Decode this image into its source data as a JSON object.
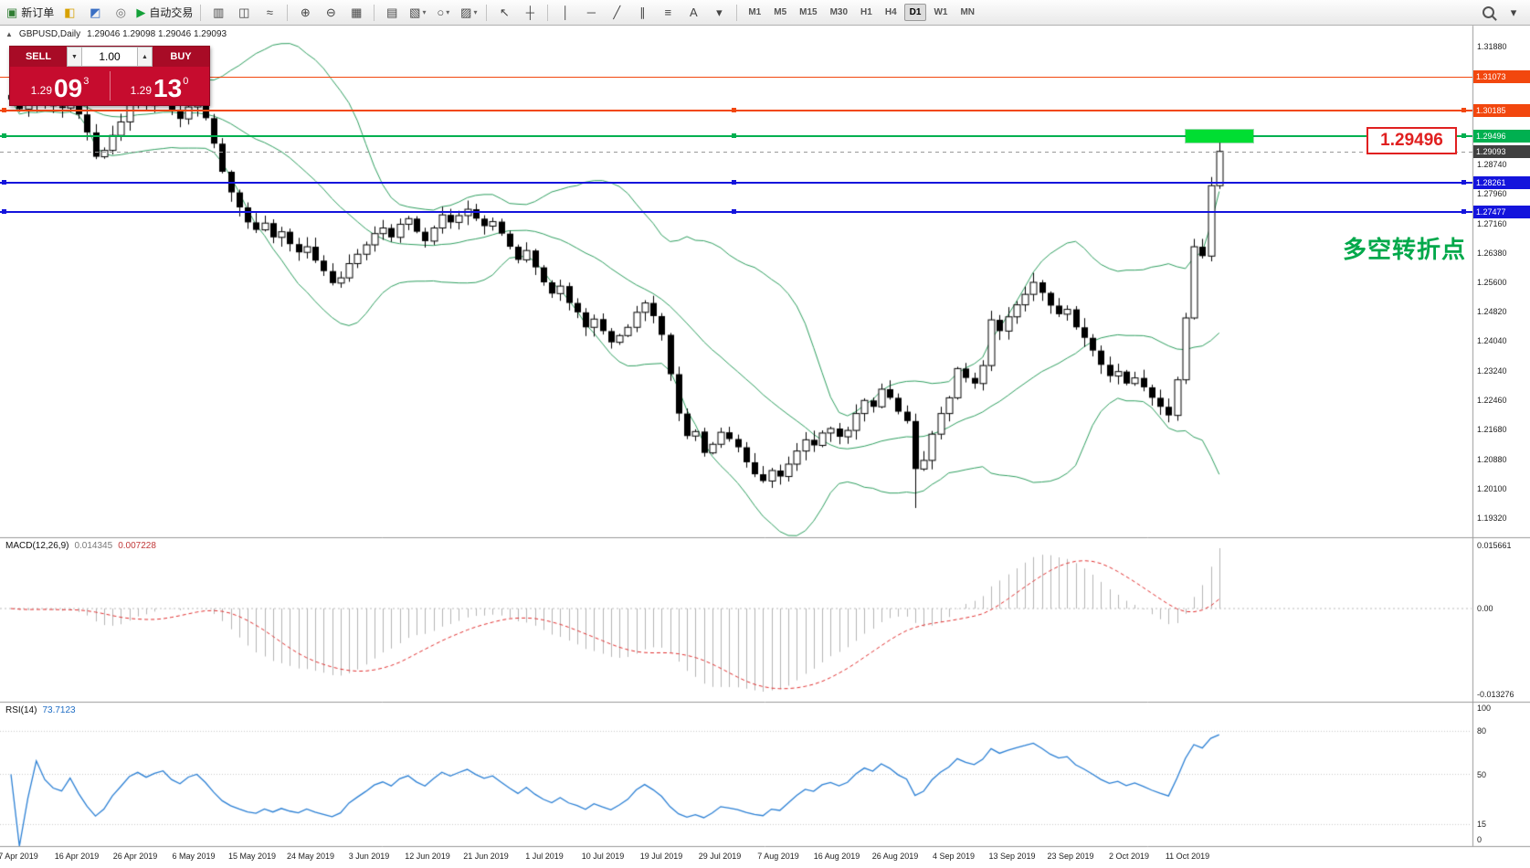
{
  "colors": {
    "up_candle": "#ffffff",
    "down_candle": "#000000",
    "bollinger": "#2e9e5f",
    "macd_hist": "#b4b4b4",
    "macd_signal": "#e03030",
    "rsi_line": "#2a7fd4",
    "panel_red": "#c60c2e",
    "accent_green": "#00b050",
    "accent_orange": "#f2470e",
    "accent_blue": "#1414dc"
  },
  "toolbar": {
    "items": [
      {
        "name": "new-order-button",
        "kind": "text",
        "glyph": "▣",
        "color": "#2f7d32",
        "label": "新订单"
      },
      {
        "name": "market-watch-icon",
        "kind": "icon",
        "glyph": "◧",
        "color": "#d7a100"
      },
      {
        "name": "navigator-icon",
        "kind": "icon",
        "glyph": "◩",
        "color": "#3a6fc4"
      },
      {
        "name": "chat-icon",
        "kind": "icon",
        "glyph": "◎",
        "color": "#707070"
      },
      {
        "name": "autotrade-button",
        "kind": "text",
        "glyph": "▶",
        "color": "#13a038",
        "label": "自动交易"
      },
      {
        "kind": "sep"
      },
      {
        "name": "bar-chart-icon",
        "kind": "icon",
        "glyph": "▥"
      },
      {
        "name": "candlestick-icon",
        "kind": "icon",
        "glyph": "◫"
      },
      {
        "name": "line-chart-icon",
        "kind": "icon",
        "glyph": "≈"
      },
      {
        "kind": "sep"
      },
      {
        "name": "zoom-in-icon",
        "kind": "icon",
        "glyph": "⊕"
      },
      {
        "name": "zoom-out-icon",
        "kind": "icon",
        "glyph": "⊖"
      },
      {
        "name": "auto-arrange-icon",
        "kind": "icon",
        "glyph": "▦"
      },
      {
        "kind": "sep"
      },
      {
        "name": "tile-windows-icon",
        "kind": "icon",
        "glyph": "▤"
      },
      {
        "name": "new-chart-icon",
        "kind": "icon",
        "glyph": "▧",
        "caret": true
      },
      {
        "name": "profiles-icon",
        "kind": "icon",
        "glyph": "○",
        "caret": true
      },
      {
        "name": "template-icon",
        "kind": "icon",
        "glyph": "▨",
        "caret": true
      },
      {
        "kind": "sep"
      },
      {
        "name": "cursor-icon",
        "kind": "icon",
        "glyph": "↖"
      },
      {
        "name": "crosshair-icon",
        "kind": "icon",
        "glyph": "┼"
      },
      {
        "kind": "sep"
      },
      {
        "name": "vertical-line-icon",
        "kind": "icon",
        "glyph": "│"
      },
      {
        "name": "horizontal-line-icon",
        "kind": "icon",
        "glyph": "─"
      },
      {
        "name": "trendline-icon",
        "kind": "icon",
        "glyph": "╱"
      },
      {
        "name": "channel-icon",
        "kind": "icon",
        "glyph": "∥"
      },
      {
        "name": "fibonacci-icon",
        "kind": "icon",
        "glyph": "≡"
      },
      {
        "name": "text-icon",
        "kind": "icon",
        "glyph": "A"
      },
      {
        "name": "objects-dropdown-icon",
        "kind": "icon",
        "glyph": "▾"
      },
      {
        "kind": "sep"
      }
    ],
    "timeframes": {
      "items": [
        "M1",
        "M5",
        "M15",
        "M30",
        "H1",
        "H4",
        "D1",
        "W1",
        "MN"
      ],
      "active": "D1"
    },
    "right_items": [
      {
        "name": "search-button",
        "kind": "css-search"
      },
      {
        "name": "toolbar-overflow-icon",
        "kind": "icon",
        "glyph": "▾"
      }
    ]
  },
  "chart": {
    "title": {
      "collapse": "▲",
      "symbol": "GBPUSD,Daily",
      "quotes": "1.29046 1.29098 1.29046 1.29093"
    },
    "trade_panel": {
      "sell_label": "SELL",
      "buy_label": "BUY",
      "volume": "1.00",
      "vol_down_glyph": "▼",
      "vol_up_glyph": "▲",
      "sell_small": "1.29",
      "sell_big": "09",
      "sell_sup": "3",
      "buy_small": "1.29",
      "buy_big": "13",
      "buy_sup": "0"
    },
    "annotation": {
      "text": "多空转折点",
      "color": "#00a84a"
    },
    "price_label": {
      "text": "1.29496",
      "color": "#e02020"
    },
    "current_price": {
      "value": 1.29093,
      "label": "1.29093"
    },
    "highlight_zone": {
      "price": 1.29496,
      "x": 1298,
      "width": 74,
      "height": 14,
      "color": "#00de32"
    },
    "levels": [
      {
        "price": 1.31073,
        "label": "1.31073",
        "color": "#f2470e",
        "thickness": 1
      },
      {
        "price": 1.30185,
        "label": "1.30185",
        "color": "#f2470e",
        "thickness": 2,
        "handles": true
      },
      {
        "price": 1.29496,
        "label": "1.29496",
        "color": "#00b050",
        "thickness": 2,
        "handles": true
      },
      {
        "price": 1.29093,
        "label": "1.29093",
        "color": "#999999",
        "tag_bg": "#404040",
        "thickness": 1,
        "style": "dashed"
      },
      {
        "price": 1.28261,
        "label": "1.28261",
        "color": "#1414dc",
        "thickness": 2,
        "handles": true
      },
      {
        "price": 1.27477,
        "label": "1.27477",
        "color": "#1414dc",
        "thickness": 2,
        "handles": true
      }
    ],
    "axis": {
      "price_ticks": [
        "1.31880",
        "1.28740",
        "1.27960",
        "1.27160",
        "1.26380",
        "1.25600",
        "1.24820",
        "1.24040",
        "1.23240",
        "1.22460",
        "1.21680",
        "1.20880",
        "1.20100",
        "1.19320"
      ]
    }
  },
  "indicators": {
    "macd": {
      "label": "MACD(12,26,9)",
      "value_main": "0.014345",
      "value_signal": "0.007228",
      "axis": [
        "0.015661",
        "0.00",
        "-0.013276"
      ]
    },
    "rsi": {
      "label": "RSI(14)",
      "value": "73.7123",
      "levels": [
        80,
        50,
        15
      ],
      "axis": [
        {
          "v": 100,
          "t": "100"
        },
        {
          "v": 80,
          "t": "80"
        },
        {
          "v": 50,
          "t": "50"
        },
        {
          "v": 15,
          "t": "15"
        },
        {
          "v": 0,
          "t": "0"
        }
      ]
    }
  },
  "chart_data": {
    "type": "candlestick",
    "symbol": "GBPUSD",
    "timeframe": "Daily",
    "y_range": [
      1.188,
      1.3245
    ],
    "x_axis_dates": [
      "7 Apr 2019",
      "16 Apr 2019",
      "26 Apr 2019",
      "6 May 2019",
      "15 May 2019",
      "24 May 2019",
      "3 Jun 2019",
      "12 Jun 2019",
      "21 Jun 2019",
      "1 Jul 2019",
      "10 Jul 2019",
      "19 Jul 2019",
      "29 Jul 2019",
      "7 Aug 2019",
      "16 Aug 2019",
      "26 Aug 2019",
      "4 Sep 2019",
      "13 Sep 2019",
      "23 Sep 2019",
      "2 Oct 2019",
      "11 Oct 2019"
    ],
    "closes": [
      1.3048,
      1.3022,
      1.3035,
      1.306,
      1.3042,
      1.303,
      1.3025,
      1.3042,
      1.3008,
      1.296,
      1.2895,
      1.2912,
      1.2952,
      1.2988,
      1.3035,
      1.3058,
      1.3032,
      1.3052,
      1.3065,
      1.302,
      1.2996,
      1.3028,
      1.3042,
      1.2998,
      1.293,
      1.2855,
      1.28,
      1.276,
      1.272,
      1.27,
      1.2718,
      1.268,
      1.2695,
      1.2662,
      1.264,
      1.2655,
      1.2618,
      1.259,
      1.2558,
      1.2572,
      1.261,
      1.2635,
      1.266,
      1.269,
      1.2705,
      1.268,
      1.2715,
      1.273,
      1.2695,
      1.267,
      1.2705,
      1.274,
      1.272,
      1.2738,
      1.2755,
      1.273,
      1.271,
      1.2722,
      1.269,
      1.2655,
      1.262,
      1.2645,
      1.26,
      1.256,
      1.253,
      1.255,
      1.2505,
      1.248,
      1.244,
      1.2462,
      1.243,
      1.24,
      1.2418,
      1.244,
      1.248,
      1.2505,
      1.247,
      1.242,
      1.2315,
      1.221,
      1.215,
      1.2162,
      1.2105,
      1.2128,
      1.216,
      1.2142,
      1.212,
      1.208,
      1.2048,
      1.203,
      1.2058,
      1.2042,
      1.2075,
      1.211,
      1.214,
      1.2125,
      1.2158,
      1.217,
      1.2148,
      1.2165,
      1.221,
      1.2245,
      1.2228,
      1.2275,
      1.2252,
      1.2215,
      1.219,
      1.2062,
      1.2085,
      1.2155,
      1.221,
      1.2252,
      1.233,
      1.2305,
      1.229,
      1.2338,
      1.246,
      1.243,
      1.2468,
      1.25,
      1.2528,
      1.256,
      1.2532,
      1.2498,
      1.2475,
      1.2488,
      1.244,
      1.2412,
      1.2378,
      1.234,
      1.231,
      1.2322,
      1.229,
      1.2305,
      1.228,
      1.2252,
      1.2228,
      1.2205,
      1.23,
      1.2465,
      1.2655,
      1.263,
      1.2818,
      1.29093
    ],
    "wick_overrides": {
      "107": {
        "low": 1.1958
      },
      "143": {
        "high": 1.295
      }
    },
    "overlays": {
      "bollinger_period": 20,
      "bollinger_dev": 2
    },
    "indicators": {
      "macd": [
        12,
        26,
        9
      ],
      "rsi": [
        14
      ]
    },
    "levels": {
      "orange": [
        1.31073,
        1.30185
      ],
      "green": [
        1.29496
      ],
      "blue": [
        1.28261,
        1.27477
      ],
      "current": 1.29093
    }
  }
}
